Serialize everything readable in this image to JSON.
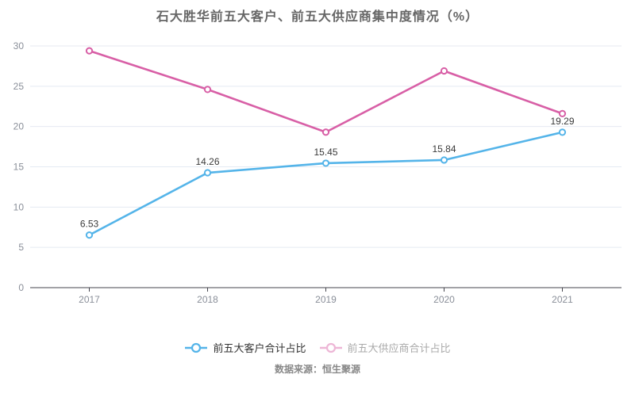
{
  "footer": {
    "source_label": "数据来源：恒生聚源"
  },
  "colors": {
    "customer_series": "#54b4e9",
    "supplier_series": "#d85fa6",
    "grid_line": "#e4eaf2",
    "axis_line": "#45454d",
    "tick_label": "#8a8f99",
    "data_label": "#3a3a3a",
    "title": "#666666",
    "legend_label_active": "#333333",
    "legend_label_muted": "#aaaaaa",
    "source_label": "#888888",
    "background": "#ffffff"
  },
  "chart_data": {
    "type": "line",
    "title": "石大胜华前五大客户、前五大供应商集中度情况（%）",
    "categories": [
      "2017",
      "2018",
      "2019",
      "2020",
      "2021"
    ],
    "series": [
      {
        "name": "前五大客户合计占比",
        "values": [
          6.53,
          14.26,
          15.45,
          15.84,
          19.29
        ],
        "color": "#54b4e9",
        "labels_shown": true,
        "legend_muted": false
      },
      {
        "name": "前五大供应商合计占比",
        "values": [
          29.4,
          24.6,
          19.3,
          26.9,
          21.6
        ],
        "color": "#d85fa6",
        "labels_shown": false,
        "legend_muted": true
      }
    ],
    "xlabel": "",
    "ylabel": "",
    "ylim": [
      0,
      30
    ],
    "ytick_step": 5,
    "grid": true,
    "legend_position": "bottom"
  }
}
